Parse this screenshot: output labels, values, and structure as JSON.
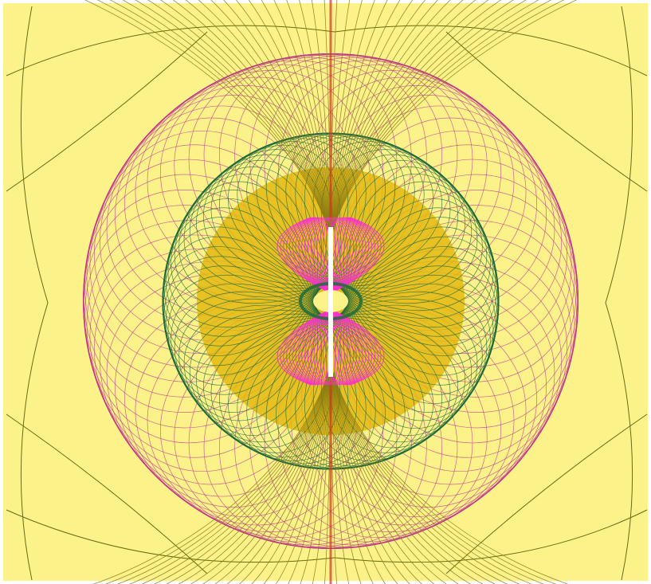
{
  "colors": {
    "background": "#fbf38a",
    "border": "#ffffff",
    "outer_field_lines": "#c0338f",
    "mid_field_lines": "#1f6b3a",
    "axial_lines": "#8a7a10",
    "core_disc": "#e3b90f",
    "core_accent": "#ff2fd0",
    "red_axis": "#d2351e",
    "center_bar": "#ffffff",
    "outer_arcs": "#6b6a12"
  },
  "icon": "dipole-field-pattern"
}
